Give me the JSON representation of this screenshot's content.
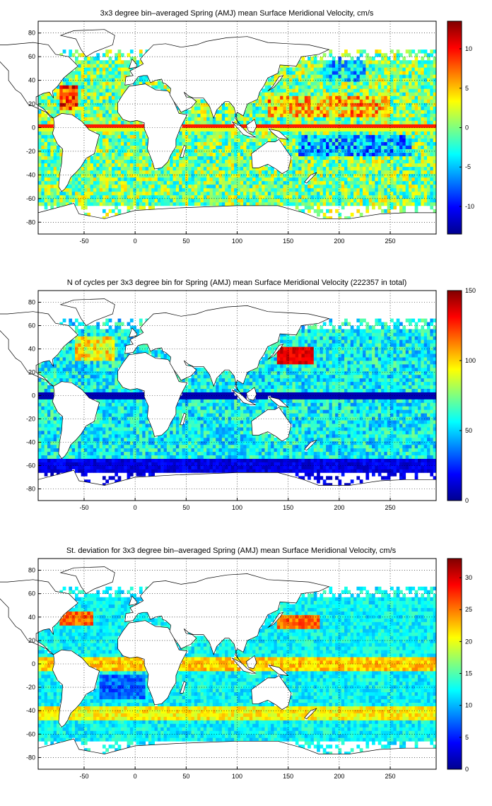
{
  "chart_data": [
    {
      "type": "heatmap",
      "title": "3x3 degree bin–averaged Spring (AMJ) mean Surface Meridional Velocity, cm/s",
      "xlim": [
        -95,
        295
      ],
      "ylim": [
        -90,
        90
      ],
      "xticks": [
        -50,
        0,
        50,
        100,
        150,
        200,
        250
      ],
      "yticks": [
        80,
        60,
        40,
        20,
        0,
        -20,
        -40,
        -60,
        -80
      ],
      "grid": true,
      "colormap": "jet",
      "colorbar": {
        "clim": [
          -13.5,
          13.5
        ],
        "ticks": [
          10,
          5,
          0,
          -5,
          -10
        ],
        "position": "right"
      },
      "field": "mean",
      "bin_size_deg": 3
    },
    {
      "type": "heatmap",
      "title": "N of cycles per 3x3 degree bin for Spring (AMJ) mean Surface Meridional Velocity (222357 in total)",
      "xlim": [
        -95,
        295
      ],
      "ylim": [
        -90,
        90
      ],
      "xticks": [
        -50,
        0,
        50,
        100,
        150,
        200,
        250
      ],
      "yticks": [
        80,
        60,
        40,
        20,
        0,
        -20,
        -40,
        -60,
        -80
      ],
      "grid": true,
      "colormap": "jet",
      "colorbar": {
        "clim": [
          0,
          150
        ],
        "ticks": [
          150,
          100,
          50,
          0
        ],
        "position": "right"
      },
      "field": "count",
      "total_cycles": 222357,
      "bin_size_deg": 3
    },
    {
      "type": "heatmap",
      "title": "St. deviation for 3x3 degree bin–averaged Spring (AMJ) mean Surface Meridional Velocity, cm/s",
      "xlim": [
        -95,
        295
      ],
      "ylim": [
        -90,
        90
      ],
      "xticks": [
        -50,
        0,
        50,
        100,
        150,
        200,
        250
      ],
      "yticks": [
        80,
        60,
        40,
        20,
        0,
        -20,
        -40,
        -60,
        -80
      ],
      "grid": true,
      "colormap": "jet",
      "colorbar": {
        "clim": [
          0,
          33
        ],
        "ticks": [
          30,
          25,
          20,
          15,
          10,
          5,
          0
        ],
        "position": "right"
      },
      "field": "std",
      "bin_size_deg": 3
    }
  ]
}
